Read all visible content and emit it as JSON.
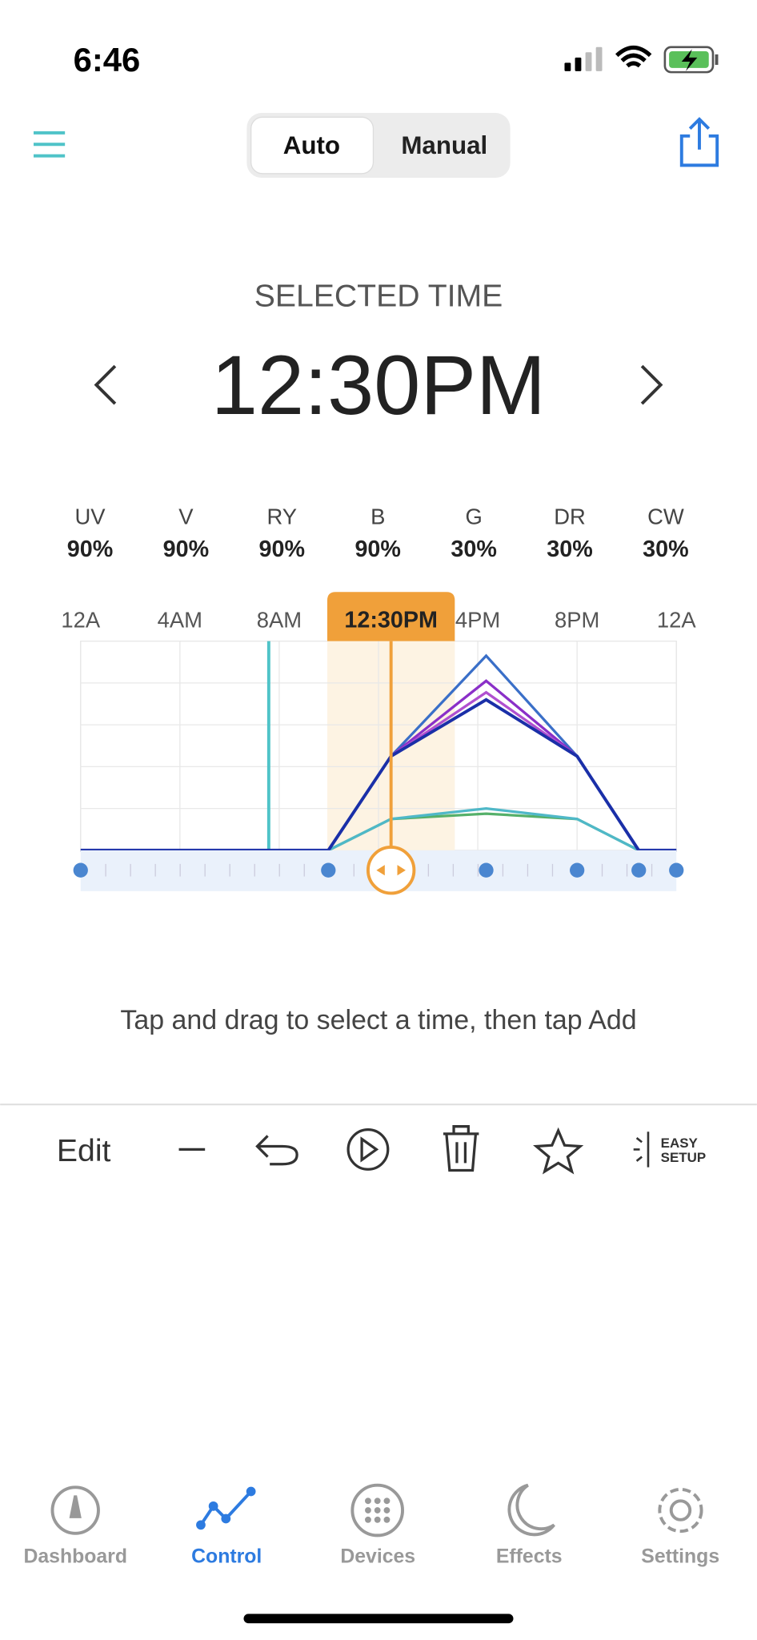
{
  "status_bar": {
    "time": "6:46"
  },
  "mode_switch": {
    "options": [
      "Auto",
      "Manual"
    ]
  },
  "selected_time": {
    "label": "SELECTED TIME",
    "value": "12:30PM"
  },
  "channels": [
    {
      "name": "UV",
      "value": "90%"
    },
    {
      "name": "V",
      "value": "90%"
    },
    {
      "name": "RY",
      "value": "90%"
    },
    {
      "name": "B",
      "value": "90%"
    },
    {
      "name": "G",
      "value": "30%"
    },
    {
      "name": "DR",
      "value": "30%"
    },
    {
      "name": "CW",
      "value": "30%"
    }
  ],
  "timeline": {
    "labels": [
      "12A",
      "4AM",
      "8AM",
      "4PM",
      "8PM",
      "12A"
    ],
    "marker": "12:30PM"
  },
  "hint": "Tap and drag to select a time, then tap Add",
  "toolbar": {
    "edit": "Edit",
    "easy_setup": [
      "EASY",
      "SETUP"
    ]
  },
  "tabs": [
    "Dashboard",
    "Control",
    "Devices",
    "Effects",
    "Settings"
  ]
}
